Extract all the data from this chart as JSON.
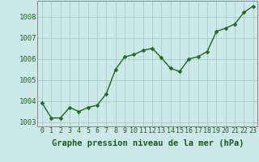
{
  "x": [
    0,
    1,
    2,
    3,
    4,
    5,
    6,
    7,
    8,
    9,
    10,
    11,
    12,
    13,
    14,
    15,
    16,
    17,
    18,
    19,
    20,
    21,
    22,
    23
  ],
  "y": [
    1003.9,
    1003.2,
    1003.2,
    1003.7,
    1003.5,
    1003.7,
    1003.8,
    1004.35,
    1005.5,
    1006.1,
    1006.2,
    1006.4,
    1006.5,
    1006.05,
    1005.55,
    1005.4,
    1006.0,
    1006.1,
    1006.35,
    1007.3,
    1007.45,
    1007.65,
    1008.2,
    1008.5
  ],
  "ylim": [
    1002.8,
    1008.75
  ],
  "yticks": [
    1003,
    1004,
    1005,
    1006,
    1007,
    1008
  ],
  "xticks": [
    0,
    1,
    2,
    3,
    4,
    5,
    6,
    7,
    8,
    9,
    10,
    11,
    12,
    13,
    14,
    15,
    16,
    17,
    18,
    19,
    20,
    21,
    22,
    23
  ],
  "line_color": "#1a6b1a",
  "marker_color": "#1a6b1a",
  "bg_color": "#cce8e8",
  "grid_color": "#aacccc",
  "xlabel": "Graphe pression niveau de la mer (hPa)",
  "xlabel_color": "#1a5c1a",
  "xlabel_fontsize": 7.5,
  "tick_fontsize": 6.0,
  "ytick_fontsize": 6.5,
  "line_width": 1.0,
  "marker_size": 2.5,
  "spine_color": "#888888"
}
